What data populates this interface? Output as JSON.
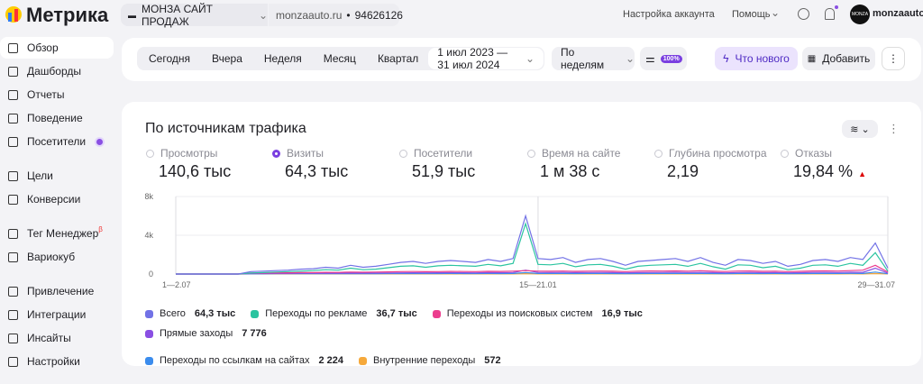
{
  "header": {
    "logo": "Метрика",
    "counter_name": "МОНЗА САЙТ ПРОДАЖ",
    "site": "monzaauto.ru",
    "counter_id": "94626126",
    "account_settings": "Настройка аккаунта",
    "help": "Помощь",
    "avatar_text": "MONZA",
    "user": "monzaauto"
  },
  "sidebar": {
    "items": [
      {
        "label": "Обзор",
        "active": true
      },
      {
        "label": "Дашборды"
      },
      {
        "label": "Отчеты"
      },
      {
        "label": "Поведение"
      },
      {
        "label": "Посетители",
        "dot": true
      },
      {
        "label": "Цели"
      },
      {
        "label": "Конверсии"
      },
      {
        "label": "Тег Менеджер",
        "badge": "β"
      },
      {
        "label": "Вариокуб"
      },
      {
        "label": "Привлечение"
      },
      {
        "label": "Интеграции"
      },
      {
        "label": "Инсайты"
      },
      {
        "label": "Настройки"
      }
    ]
  },
  "toolbar": {
    "periods": [
      "Сегодня",
      "Вчера",
      "Неделя",
      "Месяц",
      "Квартал"
    ],
    "date_range": "1 июл 2023 — 31 июл 2024",
    "grouping": "По неделям",
    "sampling": "100%",
    "whats_new": "Что нового",
    "add": "Добавить"
  },
  "report": {
    "title": "По источникам трафика",
    "metrics": [
      {
        "label": "Просмотры",
        "value": "140,6 тыс"
      },
      {
        "label": "Визиты",
        "value": "64,3 тыс",
        "selected": true
      },
      {
        "label": "Посетители",
        "value": "51,9 тыс"
      },
      {
        "label": "Время на сайте",
        "value": "1 м 38 с"
      },
      {
        "label": "Глубина просмотра",
        "value": "2,19"
      },
      {
        "label": "Отказы",
        "value": "19,84 %",
        "indicator": "up"
      }
    ]
  },
  "chart_data": {
    "type": "line",
    "categories": [
      "1—2.07",
      null,
      null,
      null,
      null,
      null,
      null,
      null,
      null,
      null,
      null,
      null,
      null,
      null,
      null,
      null,
      null,
      null,
      null,
      null,
      null,
      null,
      null,
      null,
      null,
      null,
      null,
      null,
      null,
      "15—21.01",
      null,
      null,
      null,
      null,
      null,
      null,
      null,
      null,
      null,
      null,
      null,
      null,
      null,
      null,
      null,
      null,
      null,
      null,
      null,
      null,
      null,
      null,
      null,
      null,
      null,
      null,
      null,
      "29—31.07"
    ],
    "ylim": [
      0,
      8000
    ],
    "yticks": [
      0,
      {
        "value": 4000,
        "label": "4k"
      },
      {
        "value": 8000,
        "label": "8k"
      }
    ],
    "grid": true,
    "series": [
      {
        "name": "Всего",
        "total": "64,3 тыс",
        "color": "#7272e6",
        "values": [
          0,
          0,
          0,
          0,
          0,
          0,
          250,
          300,
          350,
          400,
          500,
          550,
          700,
          600,
          900,
          700,
          800,
          1000,
          1200,
          1300,
          1100,
          1300,
          1400,
          1300,
          1200,
          1500,
          1300,
          1600,
          6000,
          1600,
          1500,
          1700,
          1200,
          1500,
          1600,
          1300,
          900,
          1300,
          1400,
          1500,
          1600,
          1300,
          1700,
          1200,
          900,
          1500,
          1400,
          1100,
          1300,
          800,
          1000,
          1400,
          1500,
          1300,
          1700,
          1500,
          3200,
          600
        ]
      },
      {
        "name": "Переходы по рекламе",
        "total": "36,7 тыс",
        "color": "#2bc4a0",
        "values": [
          0,
          0,
          0,
          0,
          0,
          0,
          100,
          150,
          200,
          250,
          300,
          350,
          450,
          400,
          600,
          450,
          500,
          650,
          800,
          850,
          700,
          850,
          900,
          850,
          800,
          1000,
          850,
          1100,
          5200,
          1000,
          950,
          1100,
          750,
          950,
          1000,
          800,
          500,
          800,
          900,
          950,
          1000,
          800,
          1100,
          750,
          500,
          950,
          900,
          650,
          800,
          450,
          600,
          900,
          950,
          800,
          1100,
          900,
          2200,
          300
        ]
      },
      {
        "name": "Переходы из поисковых систем",
        "total": "16,9 тыс",
        "color": "#ec3d8e",
        "values": [
          0,
          0,
          0,
          0,
          0,
          0,
          100,
          100,
          120,
          130,
          150,
          150,
          180,
          170,
          200,
          190,
          200,
          220,
          250,
          260,
          240,
          250,
          270,
          260,
          250,
          280,
          270,
          300,
          350,
          300,
          290,
          310,
          280,
          300,
          310,
          290,
          250,
          300,
          320,
          310,
          330,
          300,
          340,
          290,
          260,
          310,
          320,
          280,
          300,
          250,
          280,
          320,
          330,
          310,
          350,
          400,
          900,
          200
        ]
      },
      {
        "name": "Прямые заходы",
        "total": "7 776",
        "color": "#8a4fe3",
        "values": [
          0,
          0,
          0,
          0,
          0,
          0,
          50,
          50,
          60,
          60,
          70,
          70,
          80,
          80,
          90,
          90,
          100,
          110,
          120,
          130,
          120,
          130,
          140,
          130,
          120,
          150,
          140,
          160,
          400,
          170,
          160,
          170,
          150,
          160,
          170,
          150,
          120,
          150,
          160,
          170,
          180,
          160,
          180,
          150,
          120,
          160,
          170,
          140,
          160,
          120,
          140,
          170,
          180,
          160,
          190,
          180,
          600,
          80
        ]
      },
      {
        "name": "Переходы по ссылкам на сайтах",
        "total": "2 224",
        "color": "#3b8ced",
        "values": [
          0,
          0,
          0,
          0,
          0,
          0,
          20,
          20,
          25,
          25,
          30,
          30,
          35,
          35,
          40,
          40,
          40,
          45,
          50,
          50,
          45,
          50,
          55,
          50,
          50,
          55,
          50,
          60,
          150,
          60,
          55,
          60,
          50,
          55,
          60,
          50,
          40,
          50,
          55,
          60,
          60,
          55,
          60,
          50,
          40,
          55,
          60,
          50,
          55,
          40,
          50,
          60,
          60,
          55,
          65,
          60,
          200,
          30
        ]
      },
      {
        "name": "Внутренние переходы",
        "total": "572",
        "color": "#f6a93b",
        "values": [
          0,
          0,
          0,
          0,
          0,
          0,
          5,
          5,
          5,
          5,
          5,
          5,
          8,
          8,
          8,
          8,
          8,
          10,
          10,
          10,
          10,
          10,
          10,
          10,
          10,
          10,
          10,
          12,
          40,
          12,
          12,
          12,
          10,
          12,
          12,
          10,
          8,
          10,
          12,
          12,
          12,
          10,
          12,
          10,
          8,
          12,
          12,
          10,
          12,
          8,
          10,
          12,
          12,
          10,
          14,
          12,
          50,
          6
        ]
      }
    ]
  }
}
